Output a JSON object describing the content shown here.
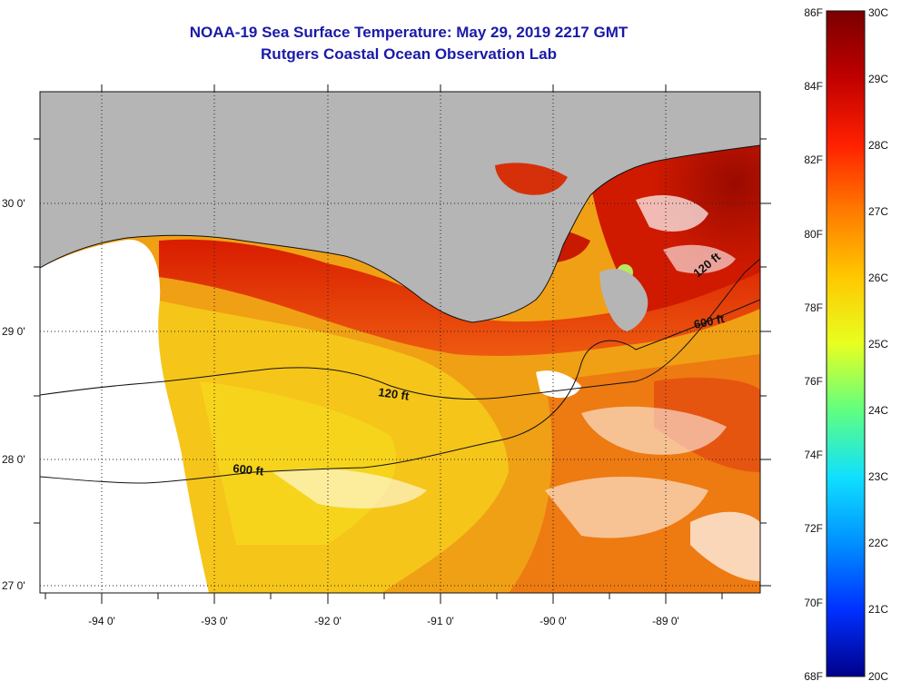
{
  "header": {
    "title": "NOAA-19 Sea Surface Temperature:  May 29, 2019 2217 GMT",
    "subtitle": "Rutgers Coastal Ocean Observation Lab"
  },
  "map": {
    "latitude_labels": [
      "30 0'",
      "29 0'",
      "28 0'",
      "27 0'"
    ],
    "longitude_labels": [
      "-94 0'",
      "-93 0'",
      "-92 0'",
      "-91 0'",
      "-90 0'",
      "-89 0'"
    ],
    "contour_labels": [
      "120 ft",
      "600 ft",
      "600 ft",
      "120 ft"
    ],
    "colors": {
      "land": "#b5b5b5",
      "cloud": "#ffffff",
      "warm": "#e83a10",
      "mid": "#f39a10",
      "cool": "#f6d018"
    }
  },
  "colorbar": {
    "fahrenheit_labels": [
      "86F",
      "84F",
      "82F",
      "80F",
      "78F",
      "76F",
      "74F",
      "72F",
      "70F",
      "68F"
    ],
    "celsius_labels": [
      "30C",
      "29C",
      "28C",
      "27C",
      "26C",
      "25C",
      "24C",
      "23C",
      "22C",
      "21C",
      "20C"
    ],
    "gradient": [
      "#7a0000",
      "#c00000",
      "#ff2000",
      "#ff7a00",
      "#ffc800",
      "#e8ff20",
      "#60ff80",
      "#10e0ff",
      "#0090ff",
      "#0030ff",
      "#00008a"
    ]
  }
}
